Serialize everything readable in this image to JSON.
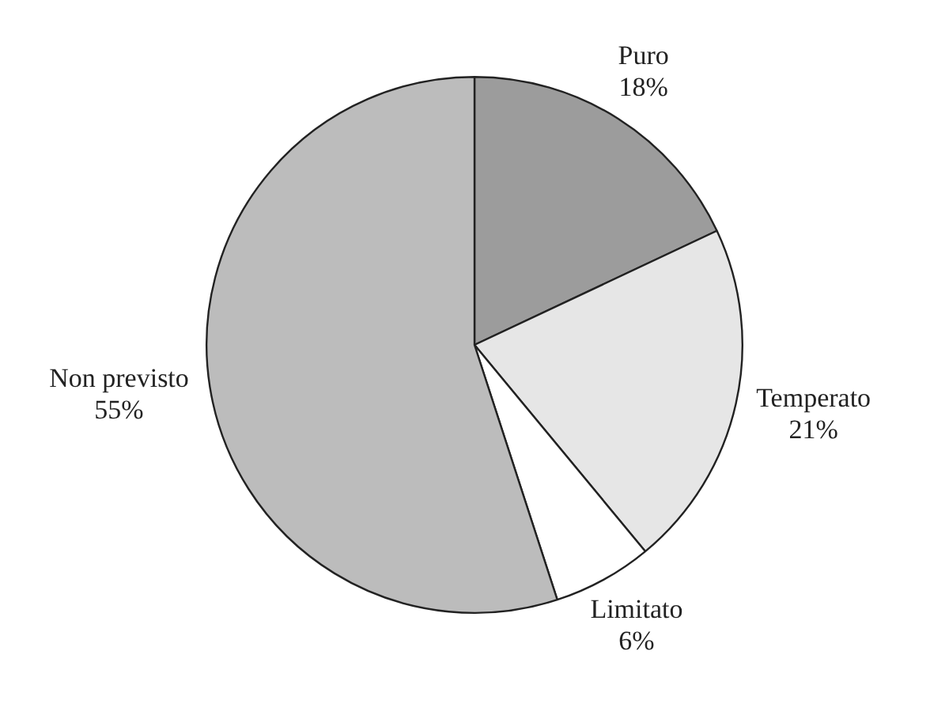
{
  "chart_data": {
    "type": "pie",
    "categories": [
      "Puro",
      "Temperato",
      "Limitato",
      "Non previsto"
    ],
    "values": [
      18,
      21,
      6,
      55
    ],
    "value_labels": [
      "18%",
      "21%",
      "6%",
      "55%"
    ],
    "colors": [
      "#9c9c9c",
      "#e6e6e6",
      "#ffffff",
      "#bcbcbc"
    ],
    "legend": false
  }
}
